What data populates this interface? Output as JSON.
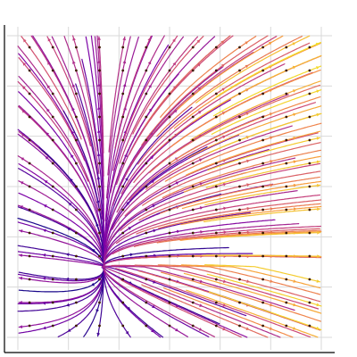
{
  "chart_data": {
    "type": "streamplot",
    "title": "",
    "xlabel": "",
    "ylabel": "",
    "xlim": [
      -3,
      3
    ],
    "ylim": [
      -3,
      3
    ],
    "grid": true,
    "legend": "none",
    "tick_labels_shown": false,
    "grid_divisions": 6,
    "vector_field": {
      "fixed_point": [
        -1.3,
        -1.6
      ],
      "eigenvalues": [
        0.55,
        0.25
      ],
      "stable_direction_slope": 0,
      "unstable_direction_angle_deg": 63
    },
    "colormap": "plasma",
    "color_by": "speed",
    "show_arrows": true,
    "show_seed_markers": true,
    "colors": {
      "grid": "#d9d9d9",
      "axis": "#000000",
      "marker": "#3d1a00"
    }
  }
}
